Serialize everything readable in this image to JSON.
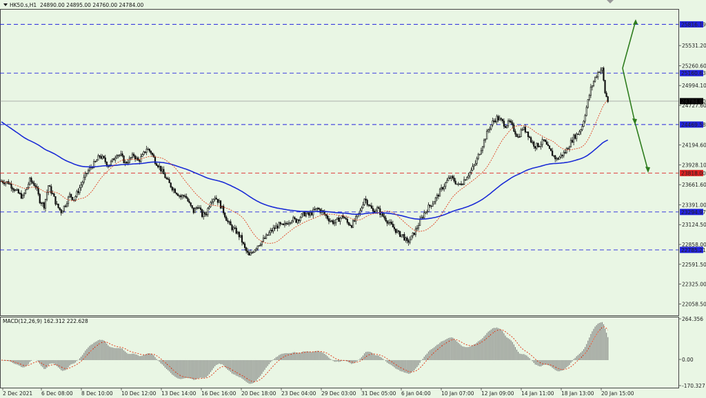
{
  "header": {
    "symbol": "HK50.s,H1",
    "ohlc": "24890.00 24895.00 24760.00 24784.00"
  },
  "macd": {
    "label": "MACD(12,26,9) 162.312 222.628",
    "axis": [
      "264.356",
      "0.00",
      "-170.327"
    ]
  },
  "price_axis": [
    "25531.20",
    "25260.60",
    "24994.10",
    "24727.60",
    "24194.60",
    "23928.10",
    "23661.60",
    "23391.00",
    "23124.50",
    "22858.00",
    "22591.50",
    "22325.00",
    "22058.50"
  ],
  "levels": [
    {
      "value": "25816.19",
      "color": "#2222dd",
      "bg": "#2222dd",
      "fg": "#ffffff"
    },
    {
      "value": "25160.63",
      "color": "#2222dd",
      "bg": "#2222dd",
      "fg": "#ffffff"
    },
    {
      "value": "24784.00",
      "color": "#888888",
      "bg": "#000000",
      "fg": "#ffffff"
    },
    {
      "value": "24469.58",
      "color": "#2222dd",
      "bg": "#2222dd",
      "fg": "#ffffff"
    },
    {
      "value": "23818.00",
      "color": "#dd2222",
      "bg": "#dd2222",
      "fg": "#ffffff"
    },
    {
      "value": "23294.97",
      "color": "#2222dd",
      "bg": "#2222dd",
      "fg": "#ffffff"
    },
    {
      "value": "22785.21",
      "color": "#2222dd",
      "bg": "#2222dd",
      "fg": "#ffffff"
    }
  ],
  "time_axis": [
    "2 Dec 2021",
    "6 Dec 08:00",
    "8 Dec 10:00",
    "10 Dec 12:00",
    "13 Dec 14:00",
    "16 Dec 16:00",
    "20 Dec 18:00",
    "23 Dec 04:00",
    "29 Dec 03:00",
    "31 Dec 05:00",
    "6 Jan 04:00",
    "10 Jan 07:00",
    "12 Jan 09:00",
    "14 Jan 11:00",
    "18 Jan 13:00",
    "20 Jan 15:00"
  ],
  "colors": {
    "background": "#e9f6e4",
    "candle": "#111111",
    "ma_slow": "#1a2bd6",
    "ma_fast": "#e0401f",
    "arrow": "#2e7d1e"
  },
  "chart_data": {
    "type": "candlestick",
    "symbol": "HK50.s",
    "timeframe": "H1",
    "last": {
      "open": 24890.0,
      "high": 24895.0,
      "low": 24760.0,
      "close": 24784.0
    },
    "y_axis_range": [
      22058.5,
      25816.19
    ],
    "horizontal_levels": [
      25816.19,
      25160.63,
      24784.0,
      24469.58,
      23818.0,
      23294.97,
      22785.21
    ],
    "price_path": [
      [
        0,
        23710
      ],
      [
        5,
        23690
      ],
      [
        10,
        23580
      ],
      [
        15,
        23490
      ],
      [
        20,
        23720
      ],
      [
        24,
        23650
      ],
      [
        27,
        23450
      ],
      [
        30,
        23380
      ],
      [
        33,
        23650
      ],
      [
        36,
        23530
      ],
      [
        39,
        23380
      ],
      [
        42,
        23300
      ],
      [
        45,
        23400
      ],
      [
        48,
        23520
      ],
      [
        51,
        23470
      ],
      [
        54,
        23580
      ],
      [
        57,
        23700
      ],
      [
        60,
        23820
      ],
      [
        63,
        23900
      ],
      [
        66,
        23960
      ],
      [
        69,
        24050
      ],
      [
        72,
        24000
      ],
      [
        75,
        23920
      ],
      [
        78,
        23980
      ],
      [
        81,
        24080
      ],
      [
        84,
        24050
      ],
      [
        87,
        23950
      ],
      [
        90,
        24000
      ],
      [
        93,
        24060
      ],
      [
        96,
        23980
      ],
      [
        99,
        24040
      ],
      [
        102,
        24150
      ],
      [
        105,
        24100
      ],
      [
        108,
        23980
      ],
      [
        111,
        23900
      ],
      [
        114,
        23800
      ],
      [
        117,
        23700
      ],
      [
        120,
        23620
      ],
      [
        123,
        23560
      ],
      [
        126,
        23500
      ],
      [
        129,
        23520
      ],
      [
        132,
        23400
      ],
      [
        135,
        23300
      ],
      [
        138,
        23380
      ],
      [
        141,
        23250
      ],
      [
        144,
        23280
      ],
      [
        147,
        23450
      ],
      [
        150,
        23500
      ],
      [
        153,
        23420
      ],
      [
        156,
        23300
      ],
      [
        159,
        23160
      ],
      [
        162,
        23080
      ],
      [
        165,
        23030
      ],
      [
        168,
        22950
      ],
      [
        171,
        22800
      ],
      [
        174,
        22700
      ],
      [
        177,
        22780
      ],
      [
        180,
        22850
      ],
      [
        183,
        22900
      ],
      [
        186,
        22960
      ],
      [
        189,
        23030
      ],
      [
        192,
        23080
      ],
      [
        195,
        23120
      ],
      [
        198,
        23100
      ],
      [
        201,
        23160
      ],
      [
        204,
        23200
      ],
      [
        207,
        23180
      ],
      [
        210,
        23230
      ],
      [
        213,
        23270
      ],
      [
        216,
        23250
      ],
      [
        219,
        23300
      ],
      [
        222,
        23340
      ],
      [
        225,
        23300
      ],
      [
        228,
        23240
      ],
      [
        231,
        23180
      ],
      [
        234,
        23150
      ],
      [
        237,
        23200
      ],
      [
        240,
        23240
      ],
      [
        243,
        23150
      ],
      [
        246,
        23120
      ],
      [
        249,
        23200
      ],
      [
        252,
        23300
      ],
      [
        255,
        23480
      ],
      [
        258,
        23400
      ],
      [
        261,
        23300
      ],
      [
        264,
        23340
      ],
      [
        267,
        23260
      ],
      [
        270,
        23200
      ],
      [
        273,
        23130
      ],
      [
        276,
        23070
      ],
      [
        279,
        23000
      ],
      [
        282,
        22980
      ],
      [
        285,
        22880
      ],
      [
        288,
        22950
      ],
      [
        291,
        23050
      ],
      [
        294,
        23170
      ],
      [
        297,
        23280
      ],
      [
        300,
        23360
      ],
      [
        303,
        23420
      ],
      [
        306,
        23500
      ],
      [
        309,
        23600
      ],
      [
        312,
        23680
      ],
      [
        315,
        23760
      ],
      [
        318,
        23720
      ],
      [
        321,
        23650
      ],
      [
        324,
        23700
      ],
      [
        327,
        23780
      ],
      [
        330,
        23850
      ],
      [
        333,
        23950
      ],
      [
        336,
        24100
      ],
      [
        339,
        24250
      ],
      [
        342,
        24400
      ],
      [
        345,
        24500
      ],
      [
        348,
        24560
      ],
      [
        351,
        24520
      ],
      [
        354,
        24460
      ],
      [
        357,
        24500
      ],
      [
        360,
        24400
      ],
      [
        363,
        24300
      ],
      [
        366,
        24420
      ],
      [
        369,
        24380
      ],
      [
        372,
        24250
      ],
      [
        375,
        24180
      ],
      [
        378,
        24200
      ],
      [
        381,
        24250
      ],
      [
        384,
        24150
      ],
      [
        387,
        24070
      ],
      [
        390,
        24000
      ],
      [
        393,
        24050
      ],
      [
        396,
        24100
      ],
      [
        399,
        24200
      ],
      [
        402,
        24300
      ],
      [
        405,
        24350
      ],
      [
        408,
        24450
      ],
      [
        411,
        24700
      ],
      [
        414,
        24950
      ],
      [
        417,
        25100
      ],
      [
        420,
        25200
      ],
      [
        422,
        25210
      ],
      [
        424,
        24900
      ],
      [
        426,
        24784
      ]
    ],
    "moving_averages": [
      {
        "period": "slow",
        "color": "#1a2bd6"
      },
      {
        "period": "fast",
        "color": "#e0401f",
        "style": "dotted"
      }
    ],
    "projection_arrows": [
      {
        "from": 25160,
        "to": 25816.19
      },
      {
        "from": 25160,
        "to": 24469.58
      },
      {
        "from": 24469.58,
        "to": 23818.0
      }
    ],
    "macd": {
      "params": "12,26,9",
      "main": 162.312,
      "signal": 222.628,
      "axis_max": 264.356,
      "axis_min": -170.327
    }
  }
}
